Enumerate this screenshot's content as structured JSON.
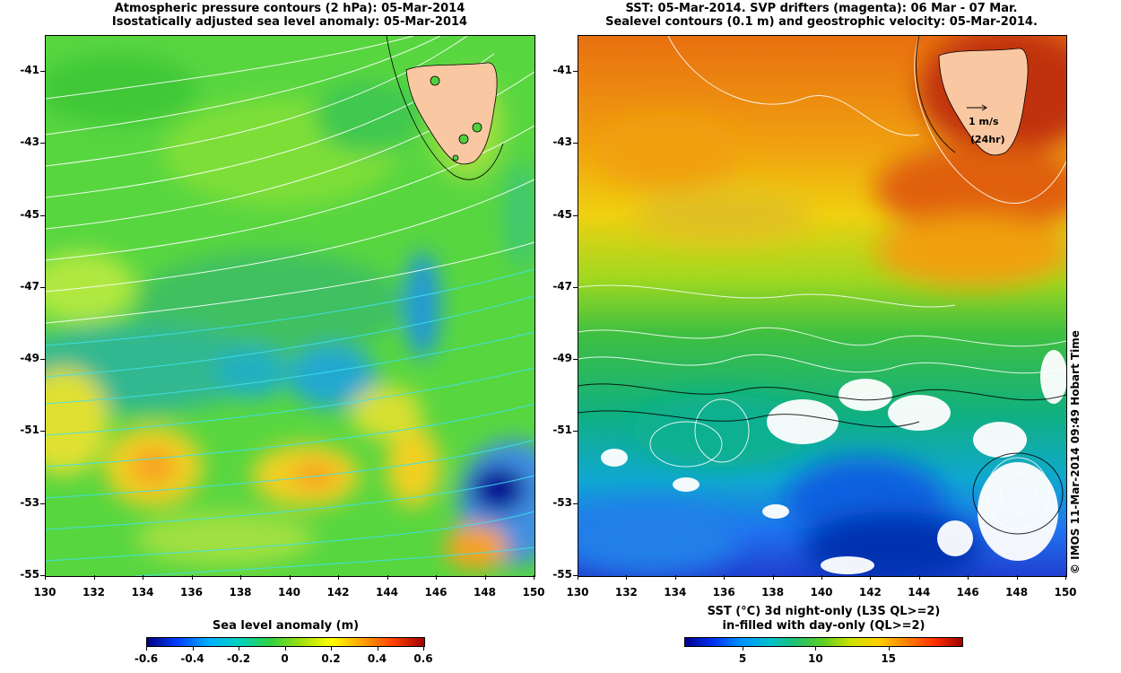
{
  "left_panel": {
    "title_line1": "Atmospheric pressure contours (2 hPa): 05-Mar-2014",
    "title_line2": "Isostatically adjusted sea level anomaly: 05-Mar-2014",
    "y_ticks": [
      "-41",
      "-43",
      "-45",
      "-47",
      "-49",
      "-51",
      "-53",
      "-55"
    ],
    "x_ticks": [
      "130",
      "132",
      "134",
      "136",
      "138",
      "140",
      "142",
      "144",
      "146",
      "148",
      "150"
    ],
    "colorbar": {
      "title": "Sea level anomaly (m)",
      "ticks": [
        "-0.6",
        "-0.4",
        "-0.2",
        "0",
        "0.2",
        "0.4",
        "0.6"
      ]
    }
  },
  "right_panel": {
    "title_line1": "SST: 05-Mar-2014. SVP drifters (magenta): 06 Mar - 07 Mar.",
    "title_line2": "Sealevel contours (0.1 m) and geostrophic velocity: 05-Mar-2014.",
    "y_ticks": [
      "-41",
      "-43",
      "-45",
      "-47",
      "-49",
      "-51",
      "-53",
      "-55"
    ],
    "x_ticks": [
      "130",
      "132",
      "134",
      "136",
      "138",
      "140",
      "142",
      "144",
      "146",
      "148",
      "150"
    ],
    "velocity_legend": {
      "speed": "1 m/s",
      "period": "(24hr)"
    },
    "colorbar": {
      "title_line1": "SST (°C) 3d night-only (L3S QL>=2)",
      "title_line2": "in-filled with day-only (QL>=2)",
      "ticks": [
        "5",
        "10",
        "15"
      ]
    }
  },
  "copyright": "© IMOS 11-Mar-2014 09:49 Hobart Time",
  "colors": {
    "land": "#f9c7a1",
    "sla_scale": [
      "#000080",
      "#0050ff",
      "#00c8ff",
      "#30d060",
      "#80e020",
      "#ffff00",
      "#ffa000",
      "#ff3000",
      "#a00000"
    ],
    "sst_scale": [
      "#000090",
      "#0040ff",
      "#00b0ff",
      "#00c0a0",
      "#30c040",
      "#a0e000",
      "#ffff00",
      "#ffa000",
      "#ff4000",
      "#a00000"
    ]
  }
}
